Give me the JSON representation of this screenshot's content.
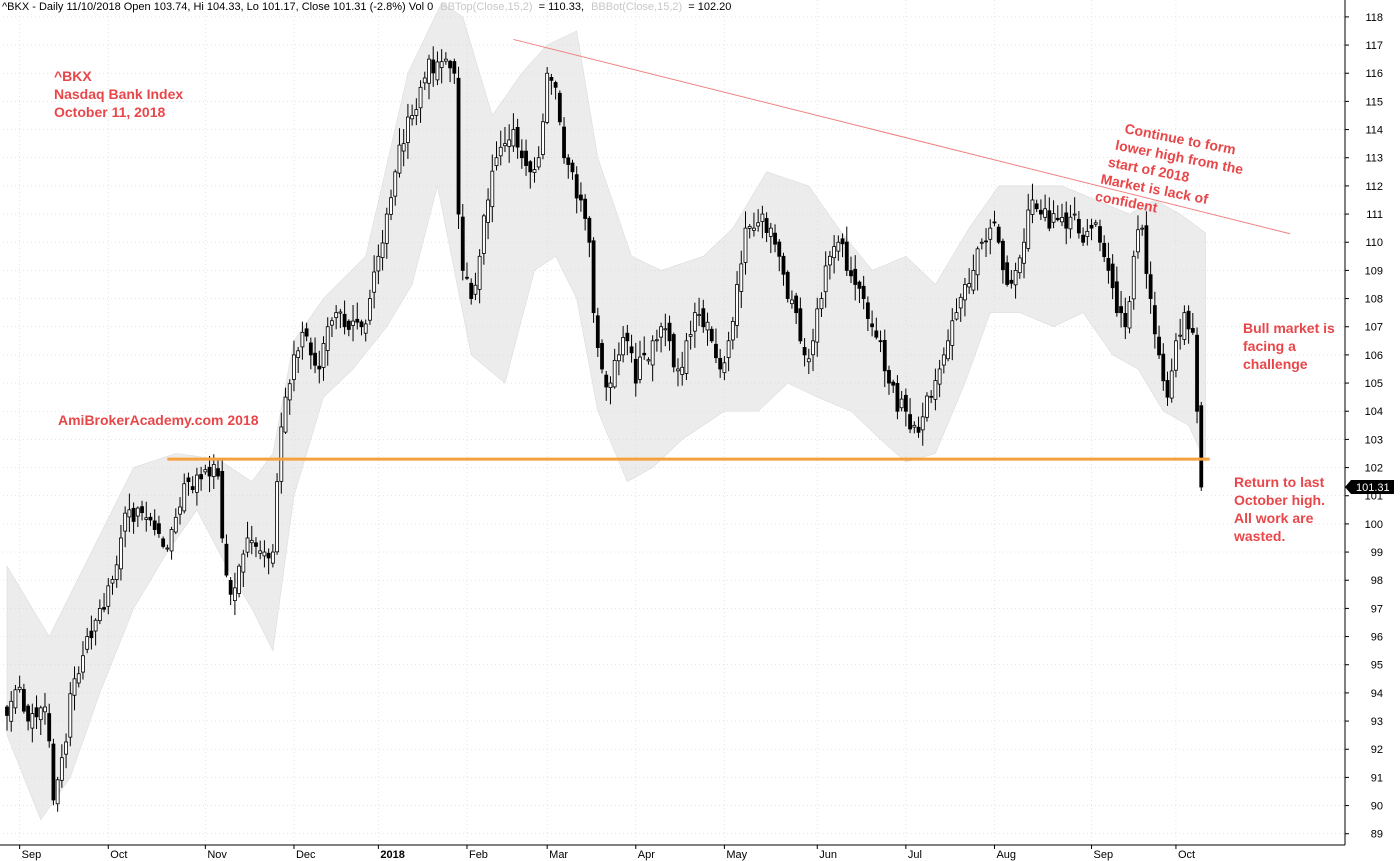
{
  "header": {
    "symbol_text": "^BKX - Daily 11/10/2018 Open 103.74, Hi 104.33, Lo 101.17, Close 101.31 (-2.8%) Vol 0",
    "bbtop_label": "BBTop(Close,15,2)",
    "bbtop_value": "= 110.33,",
    "bbbot_label": "BBBot(Close,15,2)",
    "bbbot_value": "= 102.20"
  },
  "annotations": {
    "title_line1": "^BKX",
    "title_line2": "Nasdaq Bank Index",
    "title_line3": "October 11, 2018",
    "brand": "AmiBrokerAcademy.com  2018",
    "trend_note": [
      "Continue to form",
      "lower high from the",
      "start of 2018",
      "Market is lack of",
      "confident"
    ],
    "bull_note": [
      "Bull market is",
      "facing a",
      "challenge"
    ],
    "return_note": [
      "Return to last",
      "October high.",
      "All work are",
      "wasted."
    ],
    "last_price": "101.31"
  },
  "colors": {
    "candle": "#000000",
    "band_fill": "#ececec",
    "support_line": "#f5a03c",
    "trend_line": "#f08080",
    "annotation_text": "#e8474a",
    "price_tag": "#000000"
  },
  "chart_data": {
    "type": "candlestick",
    "ylim": [
      88.6,
      118.6
    ],
    "y_ticks": [
      89,
      90,
      91,
      92,
      93,
      94,
      95,
      96,
      97,
      98,
      99,
      100,
      101,
      102,
      103,
      104,
      105,
      106,
      107,
      108,
      109,
      110,
      111,
      112,
      113,
      114,
      115,
      116,
      117,
      118
    ],
    "months": [
      {
        "label": "Sep",
        "day": 3,
        "bold": false
      },
      {
        "label": "Oct",
        "day": 24,
        "bold": false
      },
      {
        "label": "Nov",
        "day": 47,
        "bold": false
      },
      {
        "label": "Dec",
        "day": 68,
        "bold": false
      },
      {
        "label": "2018",
        "day": 88,
        "bold": true
      },
      {
        "label": "Feb",
        "day": 109,
        "bold": false
      },
      {
        "label": "Mar",
        "day": 128,
        "bold": false
      },
      {
        "label": "Apr",
        "day": 149,
        "bold": false
      },
      {
        "label": "May",
        "day": 170,
        "bold": false
      },
      {
        "label": "Jun",
        "day": 192,
        "bold": false
      },
      {
        "label": "Jul",
        "day": 213,
        "bold": false
      },
      {
        "label": "Aug",
        "day": 234,
        "bold": false
      },
      {
        "label": "Sep",
        "day": 257,
        "bold": false
      },
      {
        "label": "Oct",
        "day": 277,
        "bold": false
      }
    ],
    "num_days": 284,
    "close_anchors": [
      [
        0,
        93.2
      ],
      [
        3,
        94.2
      ],
      [
        5,
        93.0
      ],
      [
        9,
        93.5
      ],
      [
        11,
        90.2
      ],
      [
        13,
        91.7
      ],
      [
        16,
        94.5
      ],
      [
        19,
        96.0
      ],
      [
        22,
        97.0
      ],
      [
        24,
        97.8
      ],
      [
        27,
        99.5
      ],
      [
        29,
        100.5
      ],
      [
        32,
        100.4
      ],
      [
        35,
        99.8
      ],
      [
        37,
        99.2
      ],
      [
        39,
        99.8
      ],
      [
        41,
        100.6
      ],
      [
        43,
        101.5
      ],
      [
        46,
        101.6
      ],
      [
        48,
        101.7
      ],
      [
        50,
        101.7
      ],
      [
        51,
        99.5
      ],
      [
        53,
        97.5
      ],
      [
        55,
        98.5
      ],
      [
        57,
        99.5
      ],
      [
        59,
        99.2
      ],
      [
        61,
        99.0
      ],
      [
        63,
        99.0
      ],
      [
        64,
        101.5
      ],
      [
        66,
        104.5
      ],
      [
        68,
        106.0
      ],
      [
        70,
        106.8
      ],
      [
        72,
        106.0
      ],
      [
        74,
        105.5
      ],
      [
        76,
        107.0
      ],
      [
        78,
        107.5
      ],
      [
        80,
        107.0
      ],
      [
        82,
        107.2
      ],
      [
        84,
        107.0
      ],
      [
        86,
        108.0
      ],
      [
        88,
        109.5
      ],
      [
        90,
        111.0
      ],
      [
        92,
        112.5
      ],
      [
        94,
        113.5
      ],
      [
        96,
        114.5
      ],
      [
        98,
        115.5
      ],
      [
        100,
        116.5
      ],
      [
        102,
        116.4
      ],
      [
        104,
        116.5
      ],
      [
        106,
        116.0
      ],
      [
        107,
        111.0
      ],
      [
        108,
        109.0
      ],
      [
        110,
        108.0
      ],
      [
        112,
        109.5
      ],
      [
        114,
        111.5
      ],
      [
        116,
        113.0
      ],
      [
        118,
        113.5
      ],
      [
        120,
        114.0
      ],
      [
        122,
        113.0
      ],
      [
        124,
        112.5
      ],
      [
        126,
        113.0
      ],
      [
        128,
        116.0
      ],
      [
        130,
        115.5
      ],
      [
        132,
        113.0
      ],
      [
        134,
        112.5
      ],
      [
        136,
        111.5
      ],
      [
        138,
        110.0
      ],
      [
        139,
        107.5
      ],
      [
        141,
        105.5
      ],
      [
        143,
        105.0
      ],
      [
        145,
        106.0
      ],
      [
        147,
        106.5
      ],
      [
        149,
        105.0
      ],
      [
        151,
        106.0
      ],
      [
        153,
        106.5
      ],
      [
        155,
        107.0
      ],
      [
        157,
        106.5
      ],
      [
        159,
        105.5
      ],
      [
        161,
        106.5
      ],
      [
        163,
        107.5
      ],
      [
        165,
        107.0
      ],
      [
        167,
        106.5
      ],
      [
        169,
        105.5
      ],
      [
        171,
        106.5
      ],
      [
        173,
        108.5
      ],
      [
        175,
        110.5
      ],
      [
        177,
        110.5
      ],
      [
        179,
        111.0
      ],
      [
        181,
        110.5
      ],
      [
        183,
        109.5
      ],
      [
        185,
        108.0
      ],
      [
        187,
        107.5
      ],
      [
        189,
        106.0
      ],
      [
        191,
        106.5
      ],
      [
        193,
        108.0
      ],
      [
        195,
        109.5
      ],
      [
        197,
        110.0
      ],
      [
        199,
        109.0
      ],
      [
        201,
        108.5
      ],
      [
        203,
        108.0
      ],
      [
        205,
        107.0
      ],
      [
        207,
        106.5
      ],
      [
        209,
        105.0
      ],
      [
        211,
        104.0
      ],
      [
        213,
        104.0
      ],
      [
        215,
        103.5
      ],
      [
        217,
        103.8
      ],
      [
        219,
        104.5
      ],
      [
        221,
        105.5
      ],
      [
        223,
        106.5
      ],
      [
        225,
        107.5
      ],
      [
        227,
        108.5
      ],
      [
        229,
        109.0
      ],
      [
        231,
        110.0
      ],
      [
        233,
        110.5
      ],
      [
        235,
        110.0
      ],
      [
        237,
        108.5
      ],
      [
        239,
        109.0
      ],
      [
        241,
        110.0
      ],
      [
        243,
        111.5
      ],
      [
        245,
        111.0
      ],
      [
        247,
        110.5
      ],
      [
        249,
        110.8
      ],
      [
        251,
        110.5
      ],
      [
        253,
        111.0
      ],
      [
        255,
        110.0
      ],
      [
        257,
        110.5
      ],
      [
        259,
        110.0
      ],
      [
        261,
        109.0
      ],
      [
        263,
        107.5
      ],
      [
        265,
        107.0
      ],
      [
        267,
        109.5
      ],
      [
        269,
        110.5
      ],
      [
        271,
        108.0
      ],
      [
        273,
        106.0
      ],
      [
        275,
        104.5
      ],
      [
        277,
        106.5
      ],
      [
        279,
        107.5
      ],
      [
        281,
        106.8
      ],
      [
        282,
        104.0
      ],
      [
        283,
        101.31
      ]
    ],
    "bands": {
      "upper": [
        [
          0,
          98.5
        ],
        [
          10,
          96.0
        ],
        [
          20,
          99.0
        ],
        [
          30,
          102.0
        ],
        [
          40,
          102.5
        ],
        [
          50,
          102.3
        ],
        [
          58,
          101.5
        ],
        [
          63,
          102.5
        ],
        [
          68,
          106.5
        ],
        [
          75,
          108.0
        ],
        [
          85,
          109.5
        ],
        [
          95,
          116.0
        ],
        [
          103,
          118.5
        ],
        [
          108,
          118.0
        ],
        [
          115,
          114.5
        ],
        [
          122,
          116.0
        ],
        [
          128,
          117.0
        ],
        [
          135,
          117.5
        ],
        [
          140,
          113.0
        ],
        [
          148,
          109.5
        ],
        [
          155,
          109.0
        ],
        [
          165,
          109.5
        ],
        [
          172,
          110.5
        ],
        [
          180,
          112.5
        ],
        [
          190,
          112.0
        ],
        [
          197,
          110.5
        ],
        [
          205,
          109.0
        ],
        [
          213,
          109.5
        ],
        [
          220,
          108.5
        ],
        [
          228,
          110.5
        ],
        [
          235,
          112.0
        ],
        [
          243,
          112.0
        ],
        [
          250,
          112.0
        ],
        [
          258,
          111.5
        ],
        [
          266,
          111.0
        ],
        [
          272,
          111.5
        ],
        [
          278,
          111.0
        ],
        [
          284,
          110.33
        ]
      ],
      "lower": [
        [
          0,
          92.5
        ],
        [
          8,
          89.5
        ],
        [
          15,
          91.0
        ],
        [
          22,
          94.0
        ],
        [
          30,
          97.0
        ],
        [
          38,
          99.0
        ],
        [
          45,
          100.5
        ],
        [
          52,
          98.5
        ],
        [
          58,
          97.0
        ],
        [
          63,
          95.5
        ],
        [
          68,
          101.0
        ],
        [
          75,
          104.5
        ],
        [
          82,
          105.5
        ],
        [
          90,
          107.0
        ],
        [
          96,
          108.5
        ],
        [
          102,
          112.0
        ],
        [
          110,
          106.0
        ],
        [
          118,
          105.0
        ],
        [
          125,
          109.0
        ],
        [
          130,
          109.5
        ],
        [
          135,
          108.0
        ],
        [
          140,
          104.0
        ],
        [
          147,
          101.5
        ],
        [
          153,
          102.0
        ],
        [
          160,
          103.0
        ],
        [
          170,
          104.0
        ],
        [
          178,
          104.0
        ],
        [
          185,
          105.0
        ],
        [
          192,
          104.5
        ],
        [
          200,
          104.0
        ],
        [
          207,
          103.0
        ],
        [
          213,
          102.2
        ],
        [
          220,
          102.5
        ],
        [
          227,
          105.0
        ],
        [
          233,
          107.5
        ],
        [
          240,
          107.5
        ],
        [
          248,
          107.0
        ],
        [
          255,
          107.5
        ],
        [
          262,
          106.0
        ],
        [
          268,
          105.5
        ],
        [
          274,
          104.0
        ],
        [
          280,
          103.5
        ],
        [
          284,
          102.2
        ]
      ]
    },
    "support_line": {
      "day_start": 38,
      "day_end": 285,
      "y": 102.3
    },
    "trend_line": {
      "day_start": 120,
      "y_start": 117.2,
      "day_end": 354,
      "y_end": 110.3
    }
  }
}
